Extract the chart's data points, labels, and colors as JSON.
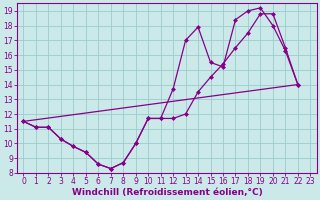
{
  "xlabel": "Windchill (Refroidissement éolien,°C)",
  "bg_color": "#cce9e9",
  "grid_color": "#99cccc",
  "line_color": "#880088",
  "xlim": [
    -0.5,
    23.5
  ],
  "ylim": [
    8,
    19.5
  ],
  "xticks": [
    0,
    1,
    2,
    3,
    4,
    5,
    6,
    7,
    8,
    9,
    10,
    11,
    12,
    13,
    14,
    15,
    16,
    17,
    18,
    19,
    20,
    21,
    22,
    23
  ],
  "yticks": [
    8,
    9,
    10,
    11,
    12,
    13,
    14,
    15,
    16,
    17,
    18,
    19
  ],
  "line1_x": [
    0,
    1,
    2,
    3,
    4,
    5,
    6,
    7,
    8,
    9,
    10,
    11,
    12,
    13,
    14,
    15,
    16,
    17,
    18,
    19,
    20,
    21,
    22
  ],
  "line1_y": [
    11.5,
    11.1,
    11.1,
    10.3,
    9.8,
    9.4,
    8.6,
    8.3,
    8.7,
    10.0,
    11.7,
    11.7,
    13.7,
    17.0,
    17.9,
    15.5,
    15.2,
    18.4,
    19.0,
    19.2,
    18.0,
    16.3,
    14.0
  ],
  "line2_x": [
    0,
    1,
    2,
    3,
    4,
    5,
    6,
    7,
    8,
    9,
    10,
    11,
    12,
    13,
    14,
    15,
    16,
    17,
    18,
    19,
    20,
    21,
    22
  ],
  "line2_y": [
    11.5,
    11.1,
    11.1,
    10.3,
    9.8,
    9.4,
    8.6,
    8.3,
    8.7,
    10.0,
    11.7,
    11.7,
    11.7,
    12.0,
    13.5,
    14.5,
    15.4,
    16.5,
    17.5,
    18.8,
    18.8,
    16.5,
    14.0
  ],
  "line3_x": [
    0,
    22
  ],
  "line3_y": [
    11.5,
    14.0
  ],
  "marker_size": 2.5,
  "font_size_tick": 5.5,
  "font_size_label": 6.5
}
